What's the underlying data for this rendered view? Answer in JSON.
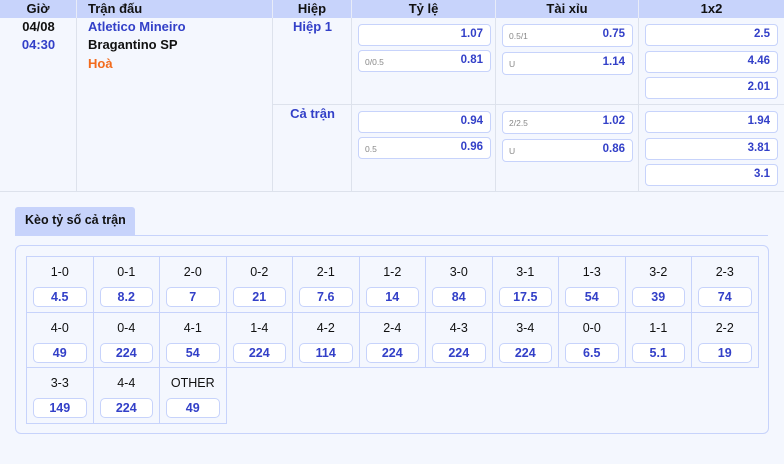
{
  "headers": {
    "time": "Giờ",
    "match": "Trận đấu",
    "half": "Hiệp",
    "handicap": "Tỷ lệ",
    "overunder": "Tài xỉu",
    "x12": "1x2"
  },
  "match": {
    "date": "04/08",
    "time": "04:30",
    "home": "Atletico Mineiro",
    "away": "Bragantino SP",
    "draw": "Hoà"
  },
  "periods": [
    {
      "label": "Hiệp 1",
      "handicap": [
        {
          "line": "",
          "odds": "1.07"
        },
        {
          "line": "0/0.5",
          "odds": "0.81"
        }
      ],
      "overunder": [
        {
          "line": "0.5/1",
          "odds": "0.75"
        },
        {
          "line": "U",
          "odds": "1.14"
        }
      ],
      "x12": [
        "2.5",
        "4.46",
        "2.01"
      ]
    },
    {
      "label": "Cả trận",
      "handicap": [
        {
          "line": "",
          "odds": "0.94"
        },
        {
          "line": "0.5",
          "odds": "0.96"
        }
      ],
      "overunder": [
        {
          "line": "2/2.5",
          "odds": "1.02"
        },
        {
          "line": "U",
          "odds": "0.86"
        }
      ],
      "x12": [
        "1.94",
        "3.81",
        "3.1"
      ]
    }
  ],
  "correct_score": {
    "tab": "Kèo tỷ số cả trận",
    "items": [
      {
        "score": "1-0",
        "odds": "4.5"
      },
      {
        "score": "0-1",
        "odds": "8.2"
      },
      {
        "score": "2-0",
        "odds": "7"
      },
      {
        "score": "0-2",
        "odds": "21"
      },
      {
        "score": "2-1",
        "odds": "7.6"
      },
      {
        "score": "1-2",
        "odds": "14"
      },
      {
        "score": "3-0",
        "odds": "84"
      },
      {
        "score": "3-1",
        "odds": "17.5"
      },
      {
        "score": "1-3",
        "odds": "54"
      },
      {
        "score": "3-2",
        "odds": "39"
      },
      {
        "score": "2-3",
        "odds": "74"
      },
      {
        "score": "4-0",
        "odds": "49"
      },
      {
        "score": "0-4",
        "odds": "224"
      },
      {
        "score": "4-1",
        "odds": "54"
      },
      {
        "score": "1-4",
        "odds": "224"
      },
      {
        "score": "4-2",
        "odds": "114"
      },
      {
        "score": "2-4",
        "odds": "224"
      },
      {
        "score": "4-3",
        "odds": "224"
      },
      {
        "score": "3-4",
        "odds": "224"
      },
      {
        "score": "0-0",
        "odds": "6.5"
      },
      {
        "score": "1-1",
        "odds": "5.1"
      },
      {
        "score": "2-2",
        "odds": "19"
      },
      {
        "score": "3-3",
        "odds": "149"
      },
      {
        "score": "4-4",
        "odds": "224"
      },
      {
        "score": "OTHER",
        "odds": "49"
      }
    ]
  }
}
